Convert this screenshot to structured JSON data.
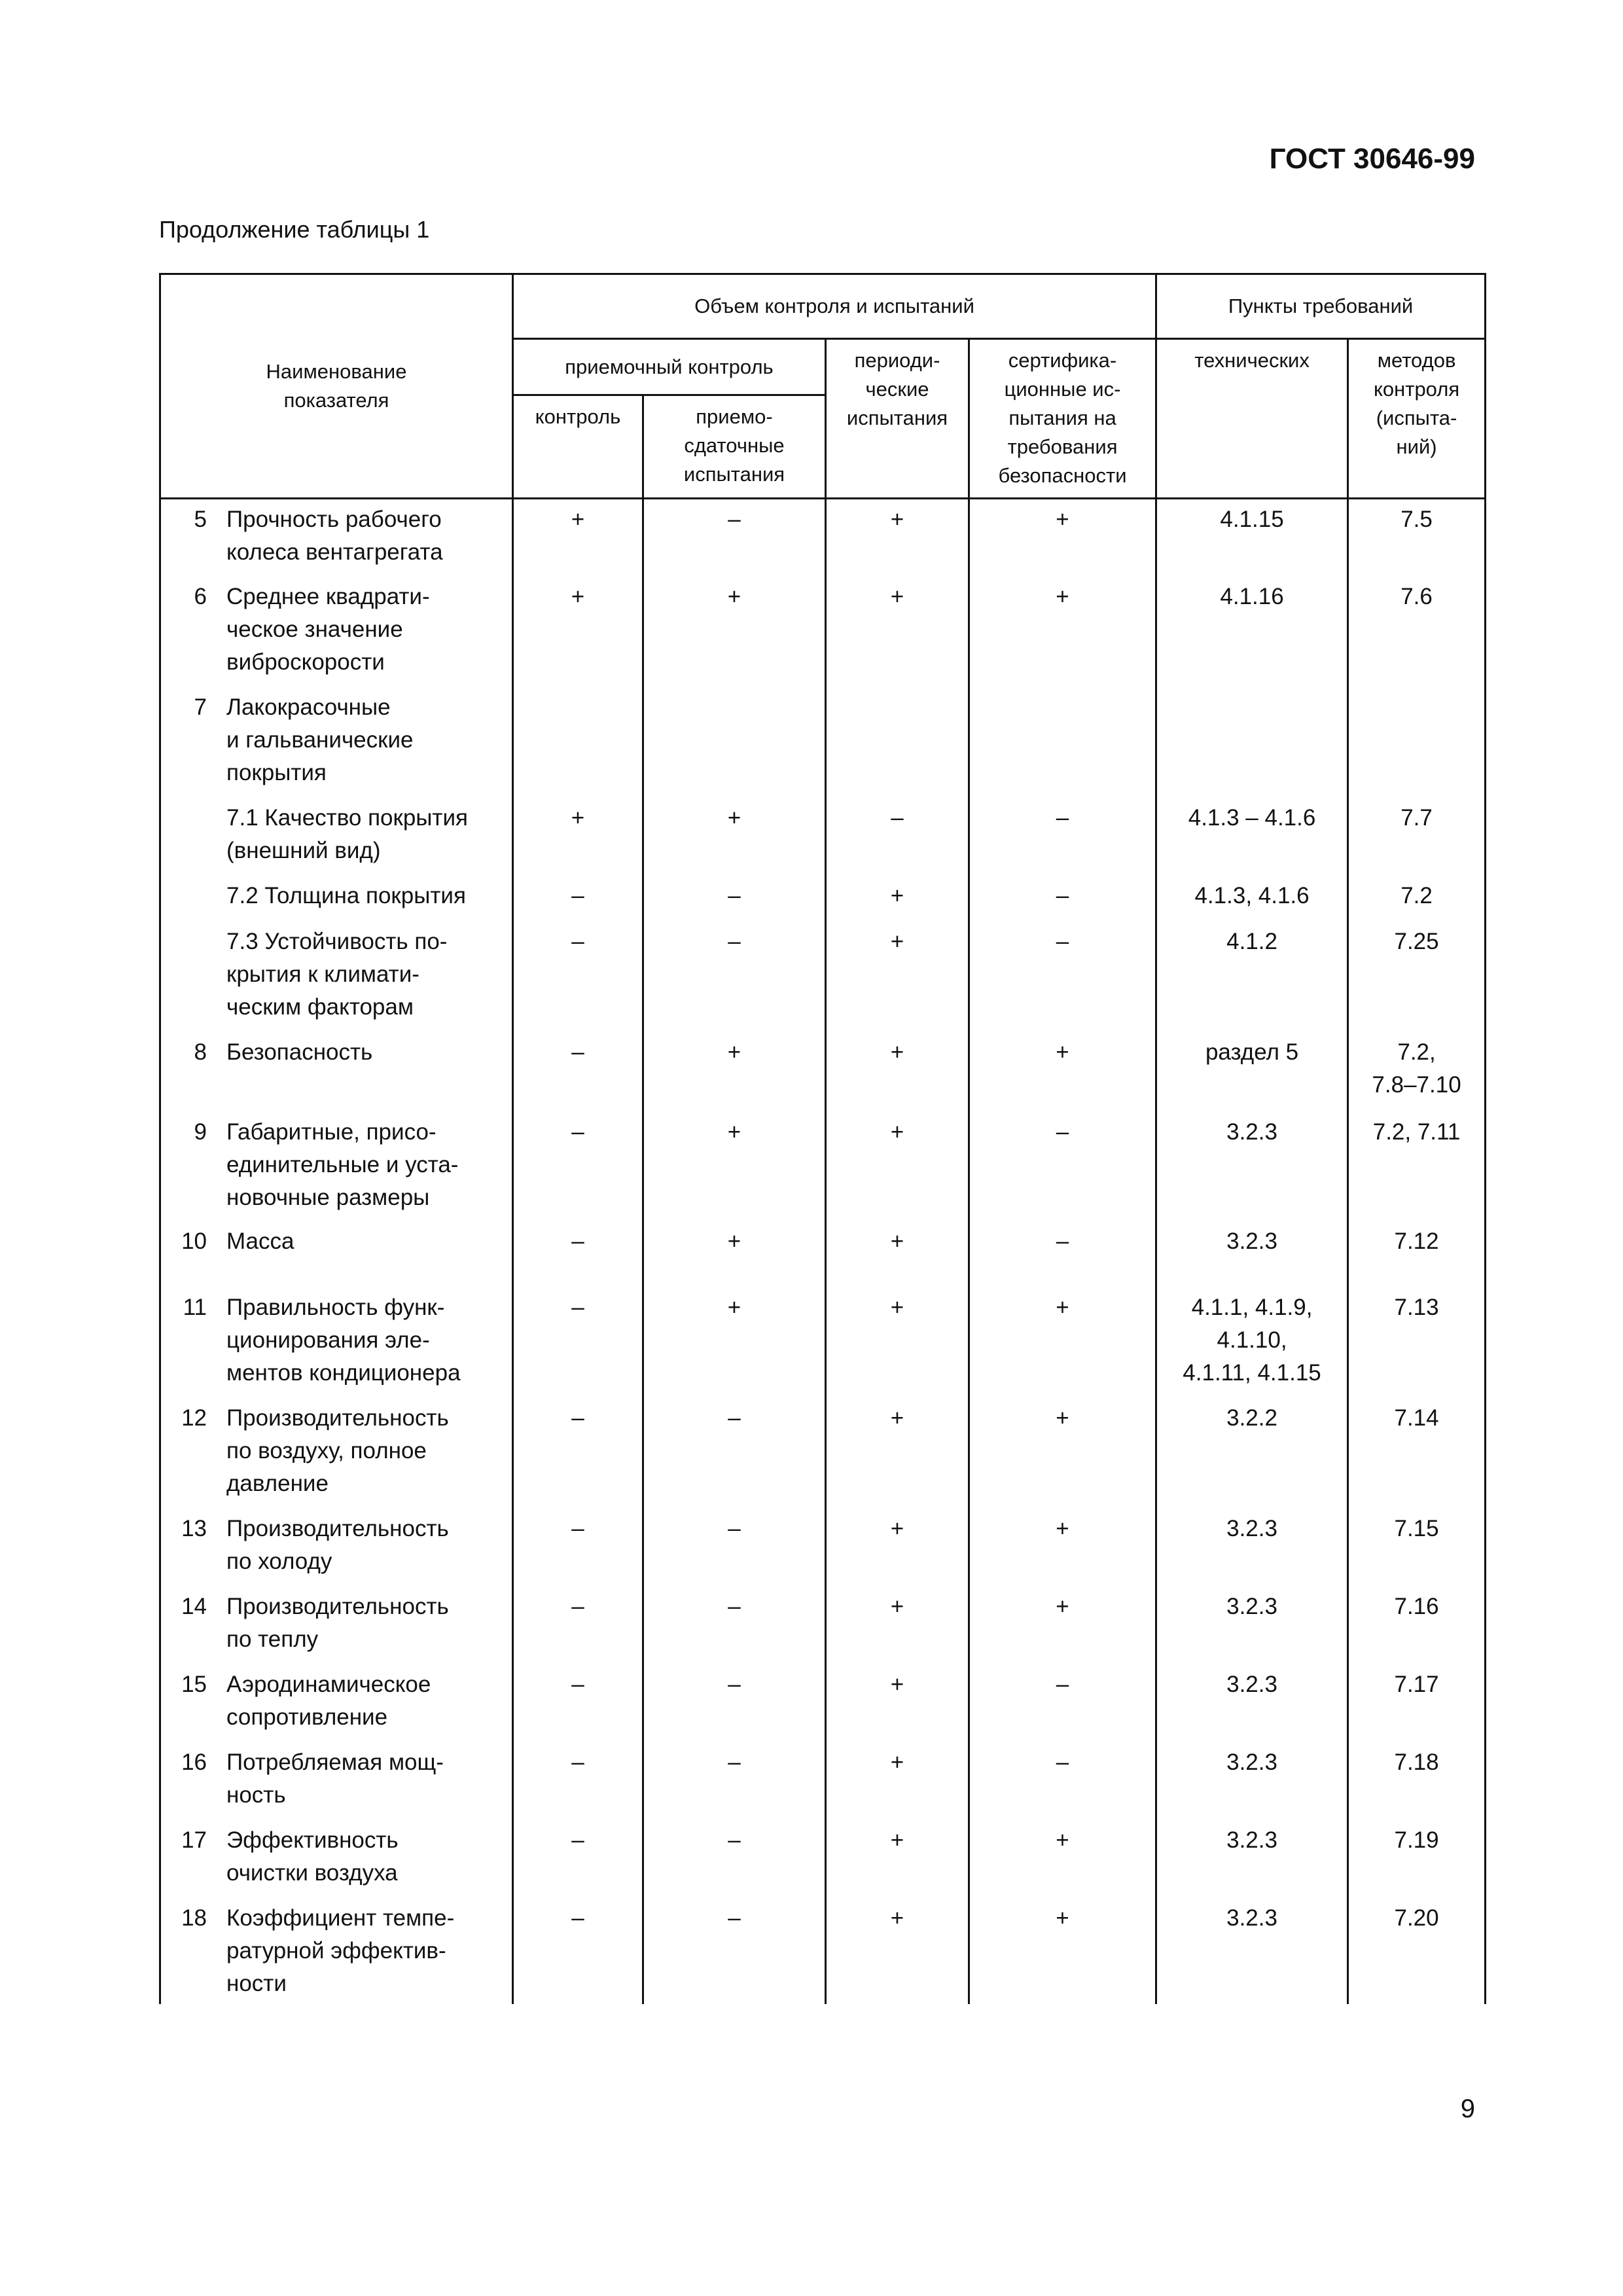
{
  "doc_code": "ГОСТ 30646-99",
  "caption": "Продолжение таблицы 1",
  "page_number": "9",
  "table": {
    "headers": {
      "name": "Наименование\nпоказателя",
      "scope": "Объем контроля и испытаний",
      "clauses": "Пункты требований",
      "acceptance": "приемочный контроль",
      "periodic": "периоди-\nческие\nиспытания",
      "certification": "сертифика-\nционные ис-\nпытания на\nтребования\nбезопасности",
      "technical": "технических",
      "methods": "методов\nконтроля\n(испыта-\nний)",
      "control": "контроль",
      "delivery": "приемо-\nсдаточные\nиспытания"
    },
    "rows": [
      {
        "num": "5",
        "name": "Прочность рабочего\nколеса вентагрегата",
        "control": "+",
        "delivery": "–",
        "periodic": "+",
        "certification": "+",
        "technical": "4.1.15",
        "methods": "7.5"
      },
      {
        "num": "6",
        "name": "Среднее квадрати-\nческое значение\nвиброскорости",
        "control": "+",
        "delivery": "+",
        "periodic": "+",
        "certification": "+",
        "technical": "4.1.16",
        "methods": "7.6"
      },
      {
        "num": "7",
        "name": "Лакокрасочные\nи гальванические\nпокрытия",
        "control": "",
        "delivery": "",
        "periodic": "",
        "certification": "",
        "technical": "",
        "methods": ""
      },
      {
        "num": "",
        "name": "7.1 Качество покрытия\n    (внешний вид)",
        "control": "+",
        "delivery": "+",
        "periodic": "–",
        "certification": "–",
        "technical": "4.1.3 – 4.1.6",
        "methods": "7.7"
      },
      {
        "num": "",
        "name": "7.2 Толщина покрытия",
        "control": "–",
        "delivery": "–",
        "periodic": "+",
        "certification": "–",
        "technical": "4.1.3, 4.1.6",
        "methods": "7.2"
      },
      {
        "num": "",
        "name": "7.3 Устойчивость по-\n    крытия к климати-\n    ческим факторам",
        "control": "–",
        "delivery": "–",
        "periodic": "+",
        "certification": "–",
        "technical": "4.1.2",
        "methods": "7.25"
      },
      {
        "num": "8",
        "name": "Безопасность",
        "control": "–",
        "delivery": "+",
        "periodic": "+",
        "certification": "+",
        "technical": "раздел 5",
        "methods": "7.2,\n7.8–7.10"
      },
      {
        "num": "9",
        "name": "Габаритные, присо-\nединительные и уста-\nновочные размеры",
        "control": "–",
        "delivery": "+",
        "periodic": "+",
        "certification": "–",
        "technical": "3.2.3",
        "methods": "7.2, 7.11"
      },
      {
        "num": "10",
        "name": "Масса",
        "control": "–",
        "delivery": "+",
        "periodic": "+",
        "certification": "–",
        "technical": "3.2.3",
        "methods": "7.12"
      },
      {
        "num": "11",
        "name": "Правильность функ-\nционирования  эле-\nментов кондиционера",
        "control": "–",
        "delivery": "+",
        "periodic": "+",
        "certification": "+",
        "technical": "4.1.1, 4.1.9,\n4.1.10,\n4.1.11, 4.1.15",
        "methods": "7.13"
      },
      {
        "num": "12",
        "name": "Производительность\nпо воздуху, полное\nдавление",
        "control": "–",
        "delivery": "–",
        "periodic": "+",
        "certification": "+",
        "technical": "3.2.2",
        "methods": "7.14"
      },
      {
        "num": "13",
        "name": "Производительность\nпо холоду",
        "control": "–",
        "delivery": "–",
        "periodic": "+",
        "certification": "+",
        "technical": "3.2.3",
        "methods": "7.15"
      },
      {
        "num": "14",
        "name": "Производительность\nпо теплу",
        "control": "–",
        "delivery": "–",
        "periodic": "+",
        "certification": "+",
        "technical": "3.2.3",
        "methods": "7.16"
      },
      {
        "num": "15",
        "name": "Аэродинамическое\nсопротивление",
        "control": "–",
        "delivery": "–",
        "periodic": "+",
        "certification": "–",
        "technical": "3.2.3",
        "methods": "7.17"
      },
      {
        "num": "16",
        "name": "Потребляемая  мощ-\nность",
        "control": "–",
        "delivery": "–",
        "periodic": "+",
        "certification": "–",
        "technical": "3.2.3",
        "methods": "7.18"
      },
      {
        "num": "17",
        "name": "Эффективность\nочистки воздуха",
        "control": "–",
        "delivery": "–",
        "periodic": "+",
        "certification": "+",
        "technical": "3.2.3",
        "methods": "7.19"
      },
      {
        "num": "18",
        "name": "Коэффициент темпе-\nратурной эффектив-\nности",
        "control": "–",
        "delivery": "–",
        "periodic": "+",
        "certification": "+",
        "technical": "3.2.3",
        "methods": "7.20"
      }
    ]
  }
}
